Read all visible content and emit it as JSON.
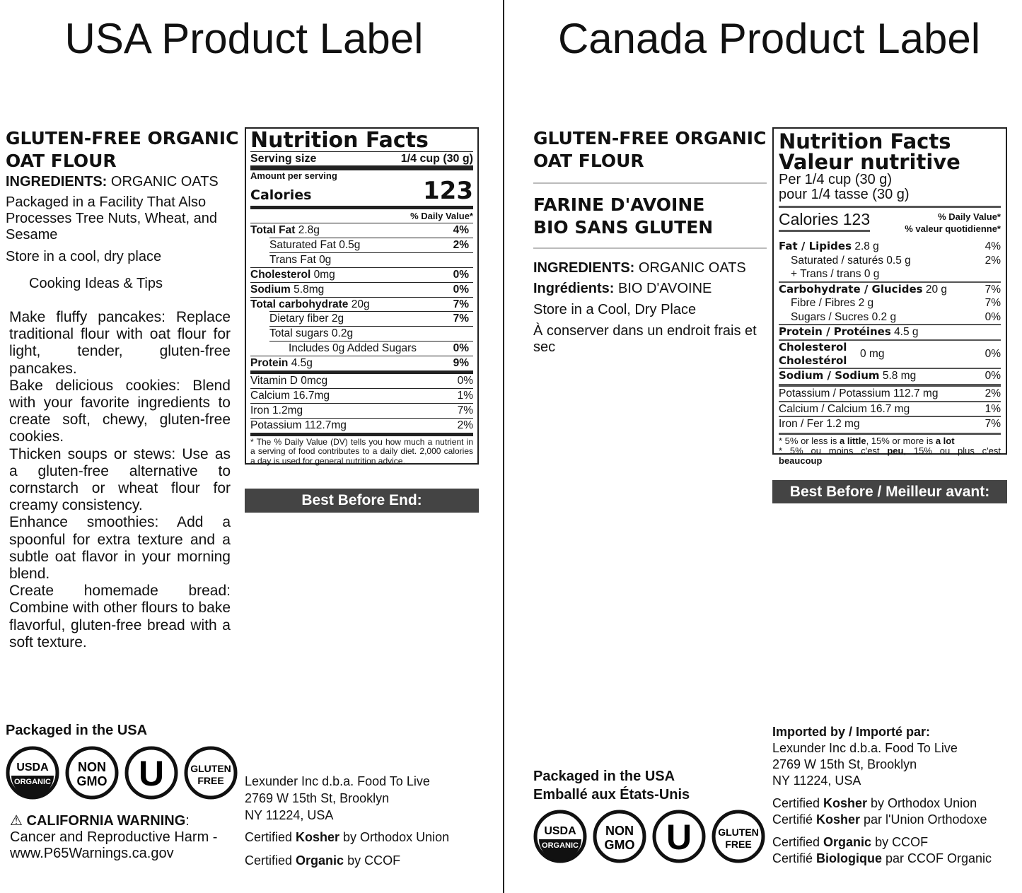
{
  "usa": {
    "title": "USA Product Label",
    "product_name": "GLUTEN-FREE ORGANIC OAT FLOUR",
    "ingredients_label": "INGREDIENTS:",
    "ingredients": "ORGANIC OATS",
    "facility": "Packaged in a Facility That Also Processes Tree Nuts, Wheat, and Sesame",
    "storage": "Store in a cool, dry place",
    "tips_heading": "Cooking Ideas & Tips",
    "tips": [
      "Make fluffy pancakes: Replace traditional flour with oat flour for light, tender, gluten-free pancakes.",
      "Bake delicious cookies: Blend with your favorite ingredients to create soft, chewy, gluten-free cookies.",
      "Thicken soups or stews: Use as a gluten-free alternative to cornstarch or wheat flour for creamy consistency.",
      "Enhance smoothies: Add a spoonful for extra texture and a subtle oat flavor in your morning blend.",
      "Create homemade bread: Combine with other flours to bake flavorful, gluten-free bread with a soft texture."
    ],
    "nutrition": {
      "title": "Nutrition Facts",
      "serving_label": "Serving size",
      "serving_value": "1/4 cup (30 g)",
      "amount_label": "Amount per serving",
      "calories_label": "Calories",
      "calories": "123",
      "dv_header": "% Daily Value*",
      "rows": [
        {
          "label": "Total Fat",
          "bold": true,
          "value": "2.8g",
          "dv": "4%",
          "indent": 0
        },
        {
          "label": "Saturated Fat",
          "value": "0.5g",
          "dv": "2%",
          "indent": 1
        },
        {
          "label": "Trans Fat",
          "value": "0g",
          "dv": "",
          "indent": 1
        },
        {
          "label": "Cholesterol",
          "bold": true,
          "value": "0mg",
          "dv": "0%",
          "indent": 0
        },
        {
          "label": "Sodium",
          "bold": true,
          "value": "5.8mg",
          "dv": "0%",
          "indent": 0
        },
        {
          "label": "Total carbohydrate",
          "bold": true,
          "value": "20g",
          "dv": "7%",
          "indent": 0
        },
        {
          "label": "Dietary fiber",
          "value": "2g",
          "dv": "7%",
          "indent": 1
        },
        {
          "label": "Total sugars",
          "value": "0.2g",
          "dv": "",
          "indent": 1
        },
        {
          "label": "Includes",
          "value": "0g Added Sugars",
          "dv": "0%",
          "indent": 2
        },
        {
          "label": "Protein",
          "bold": true,
          "value": "4.5g",
          "dv": "9%",
          "indent": 0
        },
        {
          "label": "Vitamin D",
          "value": "0mcg",
          "dv": "0%",
          "indent": 0,
          "thick": true,
          "plain": true
        },
        {
          "label": "Calcium",
          "value": "16.7mg",
          "dv": "1%",
          "indent": 0,
          "plain": true
        },
        {
          "label": "Iron",
          "value": "1.2mg",
          "dv": "7%",
          "indent": 0,
          "plain": true
        },
        {
          "label": "Potassium",
          "value": "112.7mg",
          "dv": "2%",
          "indent": 0,
          "plain": true
        }
      ],
      "footnote": "* The % Daily Value (DV) tells you how much a nutrient in a serving of food contributes to a daily diet. 2,000 calories a day is used for general nutrition advice."
    },
    "best_before": "Best Before End:",
    "packaged": "Packaged in the USA",
    "warning_title": "CALIFORNIA WARNING",
    "warning_text": "Cancer and Reproductive Harm - www.P65Warnings.ca.gov",
    "address": [
      "Lexunder Inc d.b.a. Food To Live",
      "2769 W 15th St, Brooklyn",
      "NY 11224, USA"
    ],
    "kosher": [
      "Certified ",
      "Kosher",
      " by Orthodox Union"
    ],
    "organic": [
      "Certified ",
      "Organic",
      " by CCOF"
    ]
  },
  "canada": {
    "title": "Canada Product Label",
    "product_name_en": "GLUTEN-FREE ORGANIC OAT FLOUR",
    "product_name_fr": "FARINE D'AVOINE BIO SANS GLUTEN",
    "ingredients_label": "INGREDIENTS:",
    "ingredients": "ORGANIC OATS",
    "ingredients_label_fr": "Ingrédients:",
    "ingredients_fr": "BIO D'AVOINE",
    "storage": "Store in a Cool, Dry Place",
    "storage_fr": "À conserver dans un endroit frais et sec",
    "nutrition": {
      "title": "Nutrition Facts",
      "title_fr": "Valeur nutritive",
      "per": "Per 1/4 cup (30 g)",
      "per_fr": "pour 1/4 tasse (30 g)",
      "calories": "Calories 123",
      "dv_header": "% Daily Value*",
      "dv_header_fr": "% valeur quotidienne*",
      "rows": [
        {
          "label": "Fat / Lipides",
          "value": "2.8 g",
          "dv": "4%",
          "bold": true
        },
        {
          "label": "Saturated / saturés",
          "value": "0.5 g",
          "dv": "2%",
          "indent": 1
        },
        {
          "label": "+ Trans / trans",
          "value": "0 g",
          "dv": "",
          "indent": 1
        },
        {
          "label": "Carbohydrate / Glucides",
          "value": "20 g",
          "dv": "7%",
          "bold": true,
          "line": true
        },
        {
          "label": "Fibre / Fibres",
          "value": "2 g",
          "dv": "7%",
          "indent": 1
        },
        {
          "label": "Sugars / Sucres",
          "value": "0.2 g",
          "dv": "0%",
          "indent": 1
        },
        {
          "label": "Protein / Protéines",
          "value": "4.5 g",
          "dv": "",
          "bold": true,
          "line": true
        },
        {
          "label": "Cholesterol Cholestérol",
          "value": "0 mg",
          "dv": "0%",
          "bold": true,
          "line": true,
          "two": true
        },
        {
          "label": "Sodium / Sodium",
          "value": "5.8 mg",
          "dv": "0%",
          "bold": true,
          "line": true
        },
        {
          "label": "Potassium / Potassium",
          "value": "112.7 mg",
          "dv": "2%",
          "thick": true
        },
        {
          "label": "Calcium / Calcium",
          "value": "16.7 mg",
          "dv": "1%",
          "line": true
        },
        {
          "label": "Iron / Fer",
          "value": "1.2 mg",
          "dv": "7%",
          "line": true
        }
      ],
      "footnote_en": [
        "* 5% or less is ",
        "a little",
        ", 15% or more is ",
        "a lot"
      ],
      "footnote_fr": [
        "* 5% ou moins c'est ",
        "peu",
        ", 15% ou plus c'est ",
        "beaucoup"
      ]
    },
    "best_before": "Best Before / Meilleur avant:",
    "packaged": "Packaged in the USA",
    "packaged_fr": "Emballé aux États-Unis",
    "imported_label": "Imported by / Importé par:",
    "address": [
      "Lexunder Inc d.b.a. Food To Live",
      "2769 W 15th St, Brooklyn",
      "NY 11224, USA"
    ],
    "kosher": [
      "Certified ",
      "Kosher",
      " by Orthodox Union"
    ],
    "kosher_fr": [
      "Certifié ",
      "Kosher",
      " par l'Union Orthodoxe"
    ],
    "organic": [
      "Certified ",
      "Organic",
      " by CCOF"
    ],
    "organic_fr": [
      "Certifié ",
      "Biologique",
      " par CCOF Organic"
    ]
  },
  "logos": {
    "usda": [
      "USDA",
      "ORGANIC"
    ],
    "nongmo": [
      "NON",
      "GMO"
    ],
    "ou": "U",
    "gf": [
      "GLUTEN",
      "FREE"
    ]
  }
}
